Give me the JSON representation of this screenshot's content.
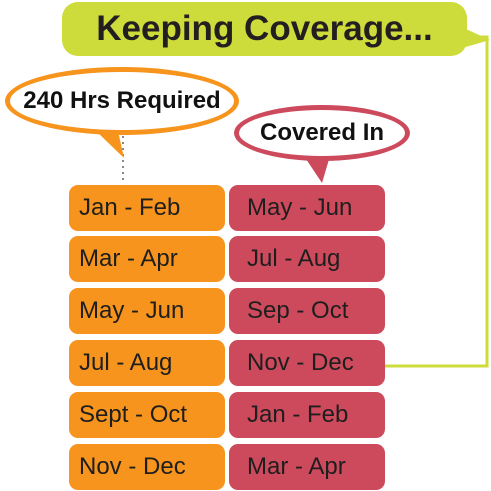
{
  "title": "Keeping Coverage...",
  "required_header": "240 Hrs Required",
  "covered_header": "Covered In",
  "colors": {
    "title_banner": "#cddc3a",
    "required": "#f7941d",
    "covered": "#cc4a5c",
    "text": "#1e1e1e"
  },
  "rows": [
    {
      "required": "Jan - Feb",
      "covered": "May - Jun"
    },
    {
      "required": "Mar - Apr",
      "covered": "Jul - Aug"
    },
    {
      "required": "May - Jun",
      "covered": "Sep - Oct"
    },
    {
      "required": "Jul - Aug",
      "covered": "Nov - Dec"
    },
    {
      "required": "Sept - Oct",
      "covered": "Jan - Feb"
    },
    {
      "required": "Nov - Dec",
      "covered": "Mar - Apr"
    }
  ]
}
